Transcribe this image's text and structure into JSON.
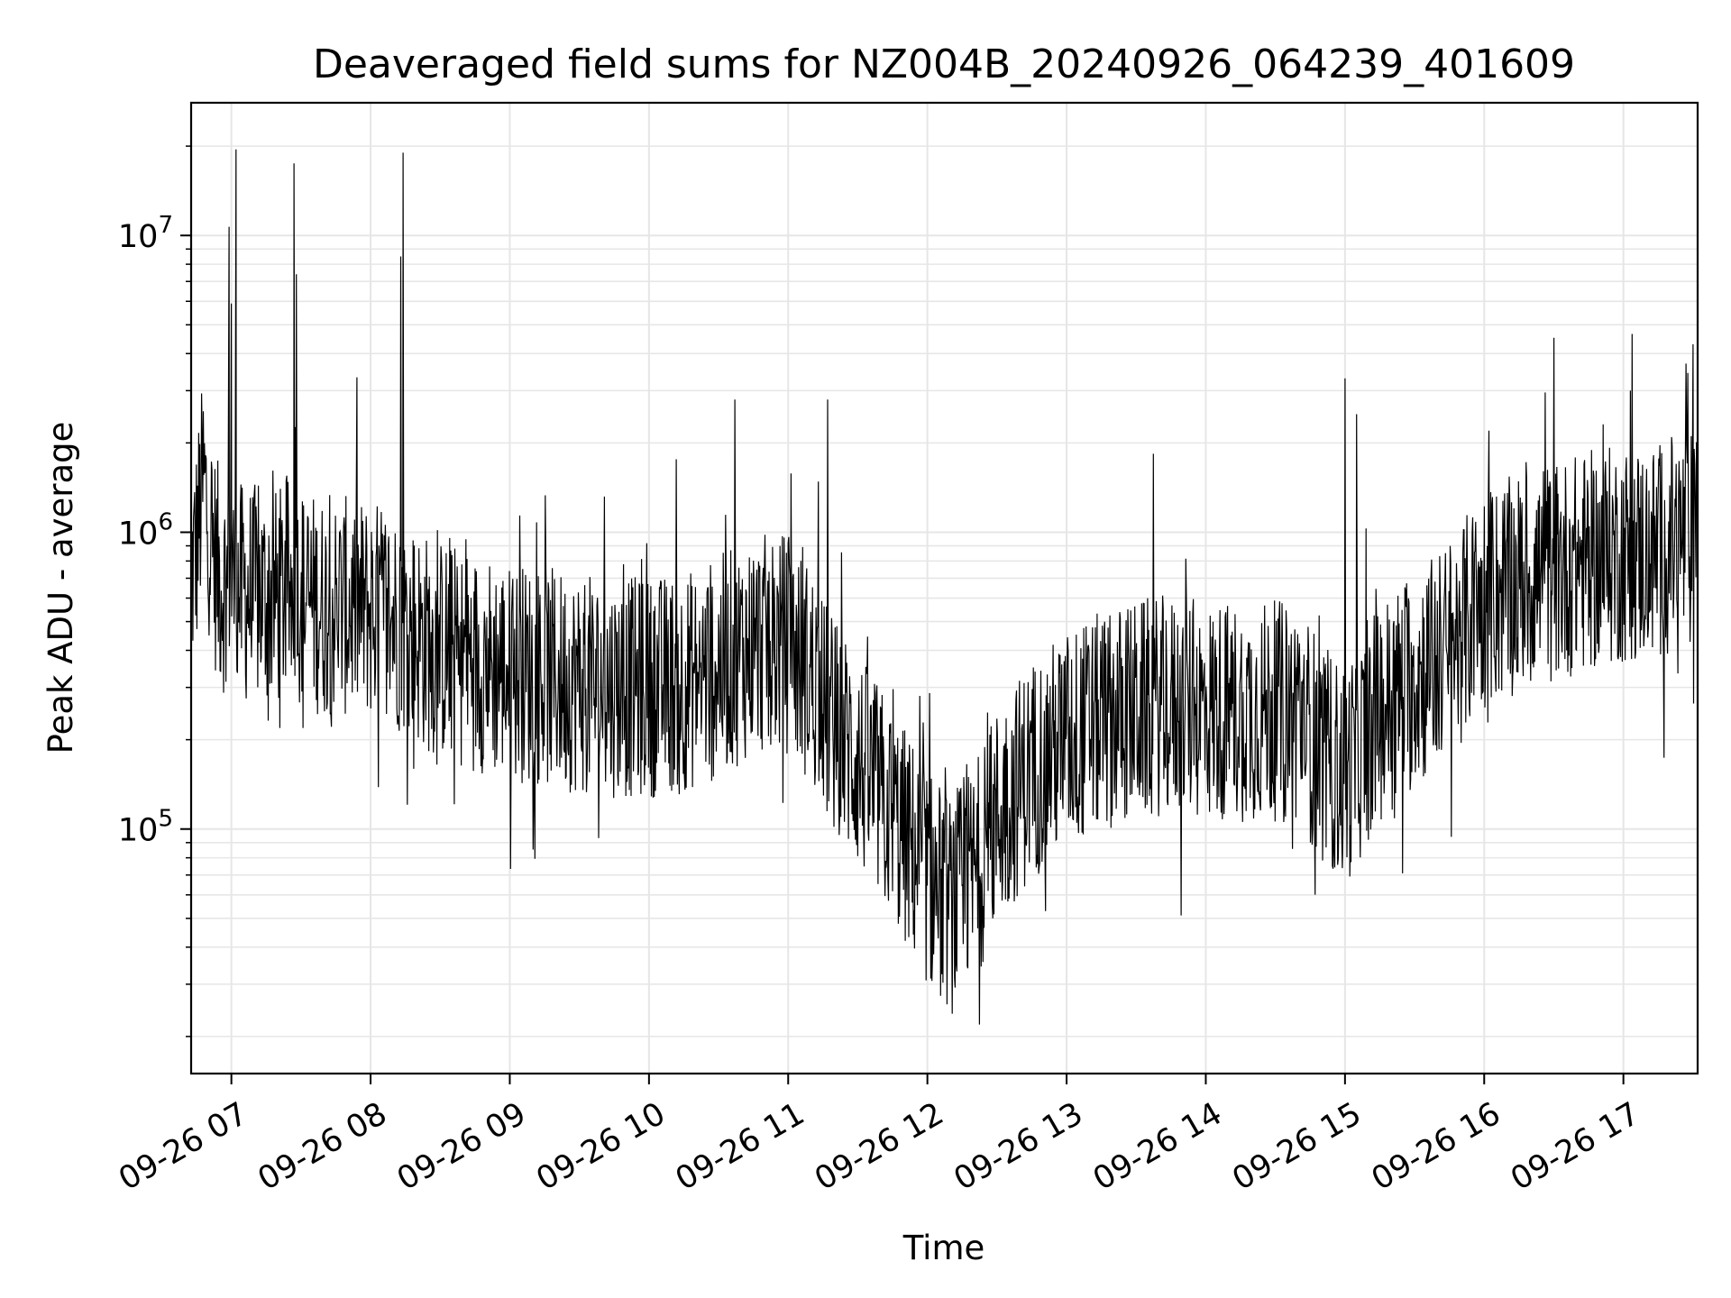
{
  "chart_data": {
    "type": "line",
    "title": "Deaveraged field sums for NZ004B_20240926_064239_401609",
    "xlabel": "Time",
    "ylabel": "Peak ADU - average",
    "xlim": [
      "2024-09-26T06:42:39",
      "2024-09-26T17:32:00"
    ],
    "ylim": [
      15000,
      28000000
    ],
    "yscale": "log",
    "grid": true,
    "line_color": "#000000",
    "x_ticks": [
      {
        "value": "2024-09-26T07:00:00",
        "label": "09-26 07"
      },
      {
        "value": "2024-09-26T08:00:00",
        "label": "09-26 08"
      },
      {
        "value": "2024-09-26T09:00:00",
        "label": "09-26 09"
      },
      {
        "value": "2024-09-26T10:00:00",
        "label": "09-26 10"
      },
      {
        "value": "2024-09-26T11:00:00",
        "label": "09-26 11"
      },
      {
        "value": "2024-09-26T12:00:00",
        "label": "09-26 12"
      },
      {
        "value": "2024-09-26T13:00:00",
        "label": "09-26 13"
      },
      {
        "value": "2024-09-26T14:00:00",
        "label": "09-26 14"
      },
      {
        "value": "2024-09-26T15:00:00",
        "label": "09-26 15"
      },
      {
        "value": "2024-09-26T16:00:00",
        "label": "09-26 16"
      },
      {
        "value": "2024-09-26T17:00:00",
        "label": "09-26 17"
      }
    ],
    "y_ticks": [
      {
        "value": 100000,
        "base": "10",
        "exp": "5"
      },
      {
        "value": 1000000,
        "base": "10",
        "exp": "6"
      },
      {
        "value": 10000000,
        "base": "10",
        "exp": "7"
      }
    ],
    "series": [
      {
        "x": [
          "2024-09-26T06:42:39",
          "2024-09-26T06:45:00",
          "2024-09-26T06:48:00",
          "2024-09-26T06:50:00",
          "2024-09-26T06:53:00",
          "2024-09-26T06:55:00",
          "2024-09-26T06:58:00",
          "2024-09-26T07:00:00",
          "2024-09-26T07:02:00",
          "2024-09-26T07:05:00",
          "2024-09-26T07:10:00",
          "2024-09-26T07:15:00",
          "2024-09-26T07:20:00",
          "2024-09-26T07:25:00",
          "2024-09-26T07:28:00",
          "2024-09-26T07:30:00",
          "2024-09-26T07:35:00",
          "2024-09-26T07:40:00",
          "2024-09-26T07:50:00",
          "2024-09-26T08:00:00",
          "2024-09-26T08:07:00",
          "2024-09-26T08:12:00",
          "2024-09-26T08:15:00",
          "2024-09-26T08:25:00",
          "2024-09-26T08:40:00",
          "2024-09-26T09:00:00",
          "2024-09-26T09:20:00",
          "2024-09-26T09:40:00",
          "2024-09-26T10:00:00",
          "2024-09-26T10:20:00",
          "2024-09-26T10:37:00",
          "2024-09-26T10:45:00",
          "2024-09-26T11:00:00",
          "2024-09-26T11:10:00",
          "2024-09-26T11:17:00",
          "2024-09-26T11:30:00",
          "2024-09-26T11:45:00",
          "2024-09-26T12:00:00",
          "2024-09-26T12:10:00",
          "2024-09-26T12:20:00",
          "2024-09-26T12:30:00",
          "2024-09-26T12:45:00",
          "2024-09-26T13:00:00",
          "2024-09-26T13:20:00",
          "2024-09-26T13:40:00",
          "2024-09-26T14:00:00",
          "2024-09-26T14:20:00",
          "2024-09-26T14:40:00",
          "2024-09-26T14:50:00",
          "2024-09-26T15:00:00",
          "2024-09-26T15:15:00",
          "2024-09-26T15:30:00",
          "2024-09-26T15:45:00",
          "2024-09-26T16:00:00",
          "2024-09-26T16:20:00",
          "2024-09-26T16:40:00",
          "2024-09-26T17:00:00",
          "2024-09-26T17:15:00",
          "2024-09-26T17:25:00",
          "2024-09-26T17:32:00"
        ],
        "center": [
          700000,
          900000,
          1500000,
          1100000,
          800000,
          700000,
          650000,
          700000,
          650000,
          620000,
          620000,
          600000,
          600000,
          650000,
          650000,
          600000,
          580000,
          560000,
          560000,
          550000,
          540000,
          500000,
          480000,
          420000,
          380000,
          340000,
          320000,
          300000,
          300000,
          320000,
          380000,
          420000,
          420000,
          330000,
          240000,
          170000,
          110000,
          70000,
          55000,
          70000,
          110000,
          160000,
          200000,
          240000,
          260000,
          250000,
          250000,
          250000,
          180000,
          150000,
          250000,
          320000,
          400000,
          600000,
          700000,
          780000,
          850000,
          850000,
          950000,
          900000
        ],
        "spikes": [
          {
            "x": "2024-09-26T06:59:00",
            "y": 10700000
          },
          {
            "x": "2024-09-26T07:00:00",
            "y": 5900000
          },
          {
            "x": "2024-09-26T07:02:00",
            "y": 19500000
          },
          {
            "x": "2024-09-26T07:27:00",
            "y": 17500000
          },
          {
            "x": "2024-09-26T07:28:00",
            "y": 7400000
          },
          {
            "x": "2024-09-26T08:13:00",
            "y": 8500000
          },
          {
            "x": "2024-09-26T08:14:00",
            "y": 19000000
          },
          {
            "x": "2024-09-26T10:37:00",
            "y": 2800000
          },
          {
            "x": "2024-09-26T11:17:00",
            "y": 2800000
          },
          {
            "x": "2024-09-26T15:00:00",
            "y": 3300000
          },
          {
            "x": "2024-09-26T15:05:00",
            "y": 2500000
          },
          {
            "x": "2024-09-26T17:03:00",
            "y": 3000000
          },
          {
            "x": "2024-09-26T17:27:00",
            "y": 3700000
          },
          {
            "x": "2024-09-26T17:30:00",
            "y": 4300000
          }
        ]
      }
    ]
  }
}
